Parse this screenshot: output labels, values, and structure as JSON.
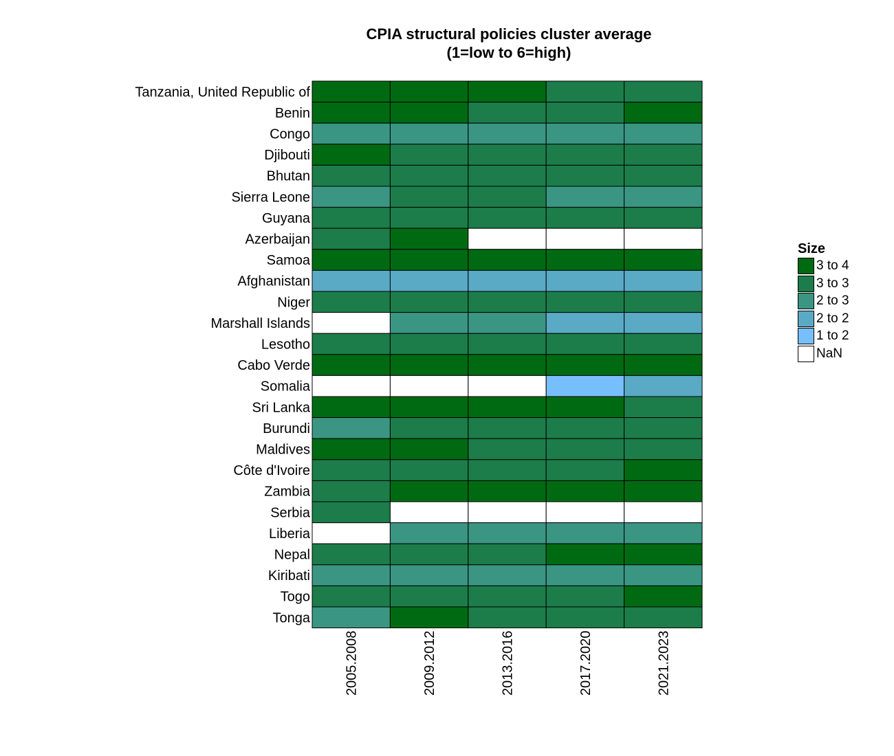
{
  "chart_data": {
    "type": "heatmap",
    "title": "CPIA structural policies cluster average",
    "subtitle": "(1=low to 6=high)",
    "columns": [
      "2005.2008",
      "2009.2012",
      "2013.2016",
      "2017.2020",
      "2021.2023"
    ],
    "rows": [
      "Tanzania, United Republic of",
      "Benin",
      "Congo",
      "Djibouti",
      "Bhutan",
      "Sierra Leone",
      "Guyana",
      "Azerbaijan",
      "Samoa",
      "Afghanistan",
      "Niger",
      "Marshall Islands",
      "Lesotho",
      "Cabo Verde",
      "Somalia",
      "Sri Lanka",
      "Burundi",
      "Maldives",
      "Côte d'Ivoire",
      "Zambia",
      "Serbia",
      "Liberia",
      "Nepal",
      "Kiribati",
      "Togo",
      "Tonga"
    ],
    "cells": [
      [
        "3 to 4",
        "3 to 4",
        "3 to 4",
        "3 to 3",
        "3 to 3"
      ],
      [
        "3 to 4",
        "3 to 4",
        "3 to 3",
        "3 to 3",
        "3 to 4"
      ],
      [
        "2 to 3",
        "2 to 3",
        "2 to 3",
        "2 to 3",
        "2 to 3"
      ],
      [
        "3 to 4",
        "3 to 3",
        "3 to 3",
        "3 to 3",
        "3 to 3"
      ],
      [
        "3 to 3",
        "3 to 3",
        "3 to 3",
        "3 to 3",
        "3 to 3"
      ],
      [
        "2 to 3",
        "3 to 3",
        "3 to 3",
        "2 to 3",
        "2 to 3"
      ],
      [
        "3 to 3",
        "3 to 3",
        "3 to 3",
        "3 to 3",
        "3 to 3"
      ],
      [
        "3 to 3",
        "3 to 4",
        "NaN",
        "NaN",
        "NaN"
      ],
      [
        "3 to 4",
        "3 to 4",
        "3 to 4",
        "3 to 4",
        "3 to 4"
      ],
      [
        "2 to 2",
        "2 to 2",
        "2 to 2",
        "2 to 2",
        "2 to 2"
      ],
      [
        "3 to 3",
        "3 to 3",
        "3 to 3",
        "3 to 3",
        "3 to 3"
      ],
      [
        "NaN",
        "2 to 3",
        "2 to 3",
        "2 to 2",
        "2 to 2"
      ],
      [
        "3 to 3",
        "3 to 3",
        "3 to 3",
        "3 to 3",
        "3 to 3"
      ],
      [
        "3 to 4",
        "3 to 4",
        "3 to 4",
        "3 to 4",
        "3 to 4"
      ],
      [
        "NaN",
        "NaN",
        "NaN",
        "1 to 2",
        "2 to 2"
      ],
      [
        "3 to 4",
        "3 to 4",
        "3 to 4",
        "3 to 4",
        "3 to 3"
      ],
      [
        "2 to 3",
        "3 to 3",
        "3 to 3",
        "3 to 3",
        "3 to 3"
      ],
      [
        "3 to 4",
        "3 to 4",
        "3 to 3",
        "3 to 3",
        "3 to 3"
      ],
      [
        "3 to 3",
        "3 to 3",
        "3 to 3",
        "3 to 3",
        "3 to 4"
      ],
      [
        "3 to 3",
        "3 to 4",
        "3 to 4",
        "3 to 4",
        "3 to 4"
      ],
      [
        "3 to 3",
        "NaN",
        "NaN",
        "NaN",
        "NaN"
      ],
      [
        "NaN",
        "2 to 3",
        "2 to 3",
        "2 to 3",
        "2 to 3"
      ],
      [
        "3 to 3",
        "3 to 3",
        "3 to 3",
        "3 to 4",
        "3 to 4"
      ],
      [
        "2 to 3",
        "2 to 3",
        "2 to 3",
        "2 to 3",
        "2 to 3"
      ],
      [
        "3 to 3",
        "3 to 3",
        "3 to 3",
        "3 to 3",
        "3 to 4"
      ],
      [
        "2 to 3",
        "3 to 4",
        "3 to 3",
        "3 to 3",
        "3 to 3"
      ]
    ],
    "legend": {
      "title": "Size",
      "placement": "right",
      "items": [
        {
          "label": "3 to 4",
          "color": "#006a12"
        },
        {
          "label": "3 to 3",
          "color": "#1c7d4a"
        },
        {
          "label": "2 to 3",
          "color": "#3a9683"
        },
        {
          "label": "2 to 2",
          "color": "#5aaac6"
        },
        {
          "label": "1 to 2",
          "color": "#77bffc"
        },
        {
          "label": "NaN",
          "color": "#ffffff"
        }
      ]
    }
  }
}
